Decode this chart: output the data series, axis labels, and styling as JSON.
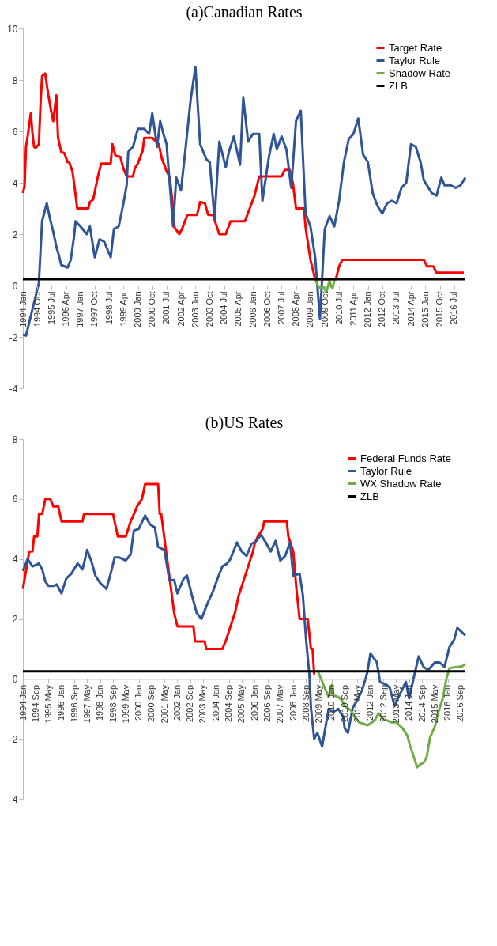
{
  "chart_data": [
    {
      "type": "line",
      "title": "(a)Canadian Rates",
      "xlim": [
        "1994-01",
        "2017-02"
      ],
      "ylim": [
        -4,
        10
      ],
      "yticks": [
        -4,
        -2,
        0,
        2,
        4,
        6,
        8,
        10
      ],
      "xticks": [
        {
          "value": "1994-01",
          "label": "1994 Jan"
        },
        {
          "value": "1994-10",
          "label": "1994 Oct"
        },
        {
          "value": "1995-07",
          "label": "1995 Jul"
        },
        {
          "value": "1996-04",
          "label": "1996 Apr"
        },
        {
          "value": "1997-01",
          "label": "1997 Jan"
        },
        {
          "value": "1997-10",
          "label": "1997 Oct"
        },
        {
          "value": "1998-07",
          "label": "1998 Jul"
        },
        {
          "value": "1999-04",
          "label": "1999 Apr"
        },
        {
          "value": "2000-01",
          "label": "2000 Jan"
        },
        {
          "value": "2000-10",
          "label": "2000 Oct"
        },
        {
          "value": "2001-07",
          "label": "2001 Jul"
        },
        {
          "value": "2002-04",
          "label": "2002 Apr"
        },
        {
          "value": "2003-01",
          "label": "2003 Jan"
        },
        {
          "value": "2003-10",
          "label": "2003 Oct"
        },
        {
          "value": "2004-07",
          "label": "2004 Jul"
        },
        {
          "value": "2005-04",
          "label": "2005 Apr"
        },
        {
          "value": "2006-01",
          "label": "2006 Jan"
        },
        {
          "value": "2006-10",
          "label": "2006 Oct"
        },
        {
          "value": "2007-07",
          "label": "2007 Jul"
        },
        {
          "value": "2008-04",
          "label": "2008 Apr"
        },
        {
          "value": "2009-01",
          "label": "2009 Jan"
        },
        {
          "value": "2009-10",
          "label": "2009 Oct"
        },
        {
          "value": "2010-07",
          "label": "2010 Jul"
        },
        {
          "value": "2011-04",
          "label": "2011 Apr"
        },
        {
          "value": "2012-01",
          "label": "2012 Jan"
        },
        {
          "value": "2012-10",
          "label": "2012 Oct"
        },
        {
          "value": "2013-07",
          "label": "2013 Jul"
        },
        {
          "value": "2014-04",
          "label": "2014 Apr"
        },
        {
          "value": "2015-01",
          "label": "2015 Jan"
        },
        {
          "value": "2015-10",
          "label": "2015 Oct"
        },
        {
          "value": "2016-07",
          "label": "2016 Jul"
        }
      ],
      "grid": false,
      "legend": "top right",
      "marker": "none",
      "line_style": "solid",
      "series": [
        {
          "name": "Target Rate",
          "color": "#ff0000",
          "x": [
            "1994-01",
            "1994-02",
            "1994-03",
            "1994-04",
            "1994-06",
            "1994-07",
            "1994-08",
            "1994-09",
            "1994-11",
            "1994-12",
            "1995-01",
            "1995-03",
            "1995-05",
            "1995-07",
            "1995-08",
            "1995-10",
            "1995-11",
            "1996-01",
            "1996-03",
            "1996-05",
            "1996-06",
            "1996-08",
            "1996-09",
            "1996-11",
            "1997-06",
            "1997-07",
            "1997-09",
            "1997-10",
            "1997-12",
            "1998-02",
            "1998-08",
            "1998-09",
            "1998-11",
            "1999-02",
            "1999-04",
            "1999-06",
            "1999-10",
            "1999-11",
            "2000-01",
            "2000-04",
            "2000-05",
            "2000-10",
            "2001-02",
            "2001-04",
            "2001-07",
            "2001-09",
            "2001-11",
            "2001-12",
            "2002-03",
            "2002-05",
            "2002-08",
            "2003-02",
            "2003-04",
            "2003-07",
            "2003-09",
            "2003-12",
            "2004-01",
            "2004-04",
            "2004-08",
            "2004-11",
            "2005-08",
            "2005-11",
            "2006-02",
            "2006-05",
            "2007-07",
            "2007-09",
            "2007-12",
            "2008-02",
            "2008-04",
            "2008-09",
            "2008-10",
            "2009-01",
            "2009-04",
            "2010-05",
            "2010-07",
            "2010-09",
            "2014-12",
            "2015-02",
            "2015-06",
            "2015-08",
            "2017-01"
          ],
          "values": [
            3.6,
            3.85,
            5.4,
            5.8,
            6.7,
            5.95,
            5.4,
            5.35,
            5.5,
            7.0,
            8.15,
            8.25,
            7.4,
            6.7,
            6.4,
            7.4,
            5.75,
            5.2,
            5.15,
            4.8,
            4.8,
            4.45,
            4.0,
            3.0,
            3.0,
            3.25,
            3.35,
            3.65,
            4.25,
            4.75,
            4.75,
            5.5,
            5.05,
            5.0,
            4.55,
            4.25,
            4.25,
            4.55,
            4.75,
            5.25,
            5.75,
            5.75,
            5.5,
            4.95,
            4.45,
            4.2,
            3.0,
            2.25,
            2.0,
            2.25,
            2.75,
            2.75,
            3.25,
            3.2,
            2.75,
            2.75,
            2.55,
            2.0,
            2.0,
            2.5,
            2.5,
            3.0,
            3.5,
            4.25,
            4.25,
            4.5,
            4.5,
            4.0,
            3.0,
            3.0,
            2.25,
            1.0,
            0.25,
            0.25,
            0.75,
            1.0,
            1.0,
            0.75,
            0.75,
            0.5,
            0.5
          ]
        },
        {
          "name": "Taylor Rule",
          "color": "#2f5597",
          "x": [
            "1994-01",
            "1994-03",
            "1994-11",
            "1995-01",
            "1995-04",
            "1995-06",
            "1995-08",
            "1995-10",
            "1995-11",
            "1996-01",
            "1996-05",
            "1996-07",
            "1996-09",
            "1996-10",
            "1997-01",
            "1997-05",
            "1997-07",
            "1997-10",
            "1998-01",
            "1998-04",
            "1998-08",
            "1998-10",
            "1999-01",
            "1999-04",
            "1999-06",
            "1999-07",
            "1999-10",
            "2000-01",
            "2000-05",
            "2000-08",
            "2000-10",
            "2001-01",
            "2001-03",
            "2001-05",
            "2001-07",
            "2001-11",
            "2002-01",
            "2002-04",
            "2002-07",
            "2002-10",
            "2003-01",
            "2003-04",
            "2003-08",
            "2003-10",
            "2004-01",
            "2004-04",
            "2004-08",
            "2004-10",
            "2005-01",
            "2005-05",
            "2005-07",
            "2005-10",
            "2006-01",
            "2006-05",
            "2006-07",
            "2006-11",
            "2007-02",
            "2007-04",
            "2007-07",
            "2007-10",
            "2008-01",
            "2008-04",
            "2008-07",
            "2008-10",
            "2009-01",
            "2009-04",
            "2009-07",
            "2009-10",
            "2010-01",
            "2010-04",
            "2010-07",
            "2010-10",
            "2011-01",
            "2011-04",
            "2011-07",
            "2011-10",
            "2012-01",
            "2012-04",
            "2012-07",
            "2012-10",
            "2013-01",
            "2013-04",
            "2013-07",
            "2013-10",
            "2014-01",
            "2014-04",
            "2014-07",
            "2014-10",
            "2014-12",
            "2015-03",
            "2015-05",
            "2015-08",
            "2015-11",
            "2016-01",
            "2016-05",
            "2016-08",
            "2016-11",
            "2017-02"
          ],
          "values": [
            -1.9,
            -1.95,
            0.1,
            2.5,
            3.2,
            2.6,
            2.1,
            1.5,
            1.3,
            0.8,
            0.7,
            1.0,
            1.9,
            2.5,
            2.3,
            2.0,
            2.3,
            1.1,
            1.8,
            1.7,
            1.1,
            2.2,
            2.3,
            3.2,
            3.9,
            5.2,
            5.4,
            6.1,
            6.1,
            5.9,
            6.7,
            5.4,
            6.4,
            5.9,
            5.5,
            2.3,
            4.2,
            3.7,
            5.4,
            7.2,
            8.5,
            5.5,
            4.9,
            4.8,
            2.6,
            5.6,
            4.6,
            5.2,
            5.8,
            4.7,
            7.3,
            5.6,
            5.9,
            5.9,
            3.3,
            5.0,
            5.9,
            5.3,
            5.8,
            5.3,
            3.8,
            6.4,
            6.8,
            2.8,
            2.3,
            1.1,
            -1.3,
            2.2,
            2.7,
            2.3,
            3.3,
            4.8,
            5.7,
            5.9,
            6.5,
            5.1,
            4.8,
            3.6,
            3.1,
            2.8,
            3.2,
            3.3,
            3.2,
            3.8,
            4.0,
            5.5,
            5.4,
            4.8,
            4.1,
            3.8,
            3.6,
            3.5,
            4.2,
            3.9,
            3.9,
            3.8,
            3.9,
            4.2
          ]
        },
        {
          "name": "Shadow Rate",
          "color": "#70ad47",
          "x": [
            "2009-04",
            "2009-06",
            "2009-08",
            "2009-09",
            "2009-11",
            "2010-01",
            "2010-02",
            "2010-03",
            "2010-04",
            "2010-05"
          ],
          "values": [
            0.25,
            -0.05,
            -0.1,
            -0.05,
            -0.25,
            0.2,
            -0.05,
            -0.1,
            0.2,
            0.25
          ]
        },
        {
          "name": "ZLB",
          "color": "#000000",
          "x": [
            "1994-01",
            "2017-02"
          ],
          "values": [
            0.25,
            0.25
          ]
        }
      ]
    },
    {
      "type": "line",
      "title": "(b)US Rates",
      "xlim": [
        "1994-01",
        "2016-12"
      ],
      "ylim": [
        -4,
        8
      ],
      "yticks": [
        -4,
        -2,
        0,
        2,
        4,
        6,
        8
      ],
      "xticks": [
        {
          "value": "1994-01",
          "label": "1994 Jan"
        },
        {
          "value": "1994-09",
          "label": "1994 Sep"
        },
        {
          "value": "1995-05",
          "label": "1995 May"
        },
        {
          "value": "1996-01",
          "label": "1996 Jan"
        },
        {
          "value": "1996-09",
          "label": "1996 Sep"
        },
        {
          "value": "1997-05",
          "label": "1997 May"
        },
        {
          "value": "1998-01",
          "label": "1998 Jan"
        },
        {
          "value": "1998-09",
          "label": "1998 Sep"
        },
        {
          "value": "1999-05",
          "label": "1999 May"
        },
        {
          "value": "2000-01",
          "label": "2000 Jan"
        },
        {
          "value": "2000-09",
          "label": "2000 Sep"
        },
        {
          "value": "2001-05",
          "label": "2001 May"
        },
        {
          "value": "2002-01",
          "label": "2002 Jan"
        },
        {
          "value": "2002-09",
          "label": "2002 Sep"
        },
        {
          "value": "2003-05",
          "label": "2003 May"
        },
        {
          "value": "2004-01",
          "label": "2004 Jan"
        },
        {
          "value": "2004-09",
          "label": "2004 Sep"
        },
        {
          "value": "2005-05",
          "label": "2005 May"
        },
        {
          "value": "2006-01",
          "label": "2006 Jan"
        },
        {
          "value": "2006-09",
          "label": "2006 Sep"
        },
        {
          "value": "2007-05",
          "label": "2007 May"
        },
        {
          "value": "2008-01",
          "label": "2008 Jan"
        },
        {
          "value": "2008-09",
          "label": "2008 Sep"
        },
        {
          "value": "2009-05",
          "label": "2009 May"
        },
        {
          "value": "2010-01",
          "label": "2010 Jan"
        },
        {
          "value": "2010-09",
          "label": "2010 Sep"
        },
        {
          "value": "2011-05",
          "label": "2011 May"
        },
        {
          "value": "2012-01",
          "label": "2012 Jan"
        },
        {
          "value": "2012-09",
          "label": "2012 Sep"
        },
        {
          "value": "2013-05",
          "label": "2013 May"
        },
        {
          "value": "2014-01",
          "label": "2014 Jan"
        },
        {
          "value": "2014-09",
          "label": "2014 Sep"
        },
        {
          "value": "2015-05",
          "label": "2015 May"
        },
        {
          "value": "2016-01",
          "label": "2016 Jan"
        },
        {
          "value": "2016-09",
          "label": "2016 Sep"
        }
      ],
      "grid": false,
      "legend": "top right",
      "marker": "none",
      "line_style": "solid",
      "series": [
        {
          "name": "Federal Funds Rate",
          "color": "#ff0000",
          "x": [
            "1994-01",
            "1994-05",
            "1994-07",
            "1994-08",
            "1994-10",
            "1994-11",
            "1995-01",
            "1995-03",
            "1995-06",
            "1995-08",
            "1995-11",
            "1996-01",
            "1997-02",
            "1997-03",
            "1998-09",
            "1998-12",
            "1999-05",
            "1999-08",
            "1999-10",
            "1999-12",
            "2000-03",
            "2000-05",
            "2001-01",
            "2001-02",
            "2001-03",
            "2001-11",
            "2002-01",
            "2002-11",
            "2002-12",
            "2003-06",
            "2003-07",
            "2004-05",
            "2004-07",
            "2004-10",
            "2005-01",
            "2005-03",
            "2005-06",
            "2005-09",
            "2005-12",
            "2006-01",
            "2006-03",
            "2006-06",
            "2006-07",
            "2007-09",
            "2007-10",
            "2008-01",
            "2008-03",
            "2008-05",
            "2008-10",
            "2008-12",
            "2009-01",
            "2009-02"
          ],
          "values": [
            3.0,
            4.25,
            4.25,
            4.75,
            4.75,
            5.5,
            5.5,
            6.0,
            6.0,
            5.75,
            5.75,
            5.25,
            5.25,
            5.5,
            5.5,
            4.75,
            4.75,
            5.25,
            5.5,
            5.75,
            6.0,
            6.5,
            6.5,
            5.5,
            5.5,
            2.2,
            1.75,
            1.75,
            1.25,
            1.25,
            1.0,
            1.0,
            1.25,
            1.75,
            2.25,
            2.75,
            3.25,
            3.75,
            4.25,
            4.5,
            4.75,
            5.0,
            5.25,
            5.25,
            4.75,
            4.25,
            3.0,
            2.0,
            2.0,
            1.0,
            1.0,
            0.15
          ]
        },
        {
          "name": "Taylor Rule",
          "color": "#2f5597",
          "x": [
            "1994-01",
            "1994-04",
            "1994-07",
            "1994-11",
            "1995-01",
            "1995-03",
            "1995-05",
            "1995-08",
            "1995-10",
            "1996-01",
            "1996-04",
            "1996-07",
            "1996-11",
            "1997-02",
            "1997-05",
            "1997-08",
            "1997-10",
            "1998-01",
            "1998-05",
            "1998-08",
            "1998-10",
            "1999-01",
            "1999-05",
            "1999-08",
            "1999-10",
            "2000-01",
            "2000-05",
            "2000-08",
            "2000-11",
            "2001-01",
            "2001-05",
            "2001-08",
            "2001-11",
            "2002-01",
            "2002-05",
            "2002-07",
            "2002-10",
            "2003-01",
            "2003-04",
            "2003-08",
            "2003-11",
            "2004-02",
            "2004-05",
            "2004-08",
            "2004-10",
            "2005-02",
            "2005-05",
            "2005-08",
            "2005-11",
            "2006-02",
            "2006-05",
            "2006-08",
            "2006-11",
            "2007-02",
            "2007-05",
            "2007-08",
            "2007-11",
            "2008-01",
            "2008-05",
            "2008-07",
            "2008-09",
            "2008-11",
            "2008-12",
            "2009-02",
            "2009-04",
            "2009-07",
            "2009-11",
            "2010-02",
            "2010-05",
            "2010-08",
            "2010-09",
            "2010-11",
            "2011-02",
            "2011-05",
            "2011-08",
            "2011-11",
            "2012-01",
            "2012-05",
            "2012-07",
            "2012-11",
            "2013-01",
            "2013-04",
            "2013-07",
            "2013-11",
            "2014-01",
            "2014-04",
            "2014-07",
            "2014-10",
            "2015-01",
            "2015-05",
            "2015-08",
            "2015-11",
            "2016-02",
            "2016-05",
            "2016-07",
            "2016-12"
          ],
          "values": [
            3.6,
            4.0,
            3.75,
            3.85,
            3.65,
            3.25,
            3.1,
            3.1,
            3.15,
            2.85,
            3.35,
            3.5,
            3.85,
            3.65,
            4.3,
            3.85,
            3.45,
            3.2,
            3.0,
            3.6,
            4.05,
            4.05,
            3.95,
            4.15,
            4.95,
            5.0,
            5.45,
            5.15,
            5.05,
            4.4,
            4.3,
            3.3,
            3.3,
            2.85,
            3.35,
            3.45,
            2.8,
            2.2,
            2.0,
            2.55,
            2.9,
            3.35,
            3.75,
            3.85,
            4.0,
            4.55,
            4.25,
            4.1,
            4.5,
            4.6,
            4.8,
            4.55,
            4.25,
            4.6,
            3.95,
            4.1,
            4.55,
            3.45,
            3.5,
            2.8,
            1.3,
            0.15,
            -0.95,
            -2.0,
            -1.8,
            -2.25,
            -1.0,
            -1.1,
            -1.0,
            -1.25,
            -1.65,
            -1.8,
            -0.95,
            -0.7,
            -0.35,
            0.2,
            0.85,
            0.55,
            -0.1,
            -0.2,
            -0.3,
            -0.9,
            -0.55,
            -0.1,
            -0.65,
            0.05,
            0.75,
            0.4,
            0.3,
            0.55,
            0.55,
            0.4,
            1.05,
            1.3,
            1.7,
            1.45
          ]
        },
        {
          "name": "WX Shadow Rate",
          "color": "#70ad47",
          "x": [
            "2009-04",
            "2009-09",
            "2009-11",
            "2010-01",
            "2010-02",
            "2010-05",
            "2010-07",
            "2010-09",
            "2011-01",
            "2011-03",
            "2011-06",
            "2011-09",
            "2011-11",
            "2012-02",
            "2012-04",
            "2012-06",
            "2012-09",
            "2012-12",
            "2013-02",
            "2013-05",
            "2013-06",
            "2013-09",
            "2013-12",
            "2014-02",
            "2014-04",
            "2014-06",
            "2014-08",
            "2014-10",
            "2014-12",
            "2015-02",
            "2015-05",
            "2015-07",
            "2015-10",
            "2015-12",
            "2016-02",
            "2016-04",
            "2016-07",
            "2016-10",
            "2016-12"
          ],
          "values": [
            0.3,
            -0.35,
            -0.6,
            -0.2,
            -0.55,
            -0.6,
            -0.7,
            -0.9,
            -1.05,
            -1.25,
            -1.45,
            -1.5,
            -1.55,
            -1.45,
            -1.35,
            -1.15,
            -1.35,
            -1.4,
            -1.45,
            -1.45,
            -1.5,
            -1.65,
            -1.9,
            -2.3,
            -2.6,
            -2.95,
            -2.85,
            -2.8,
            -2.6,
            -1.95,
            -1.6,
            -1.15,
            -0.65,
            -0.05,
            0.35,
            0.38,
            0.4,
            0.42,
            0.5
          ]
        },
        {
          "name": "ZLB",
          "color": "#000000",
          "x": [
            "1994-01",
            "2016-12"
          ],
          "values": [
            0.25,
            0.25
          ]
        }
      ]
    }
  ]
}
